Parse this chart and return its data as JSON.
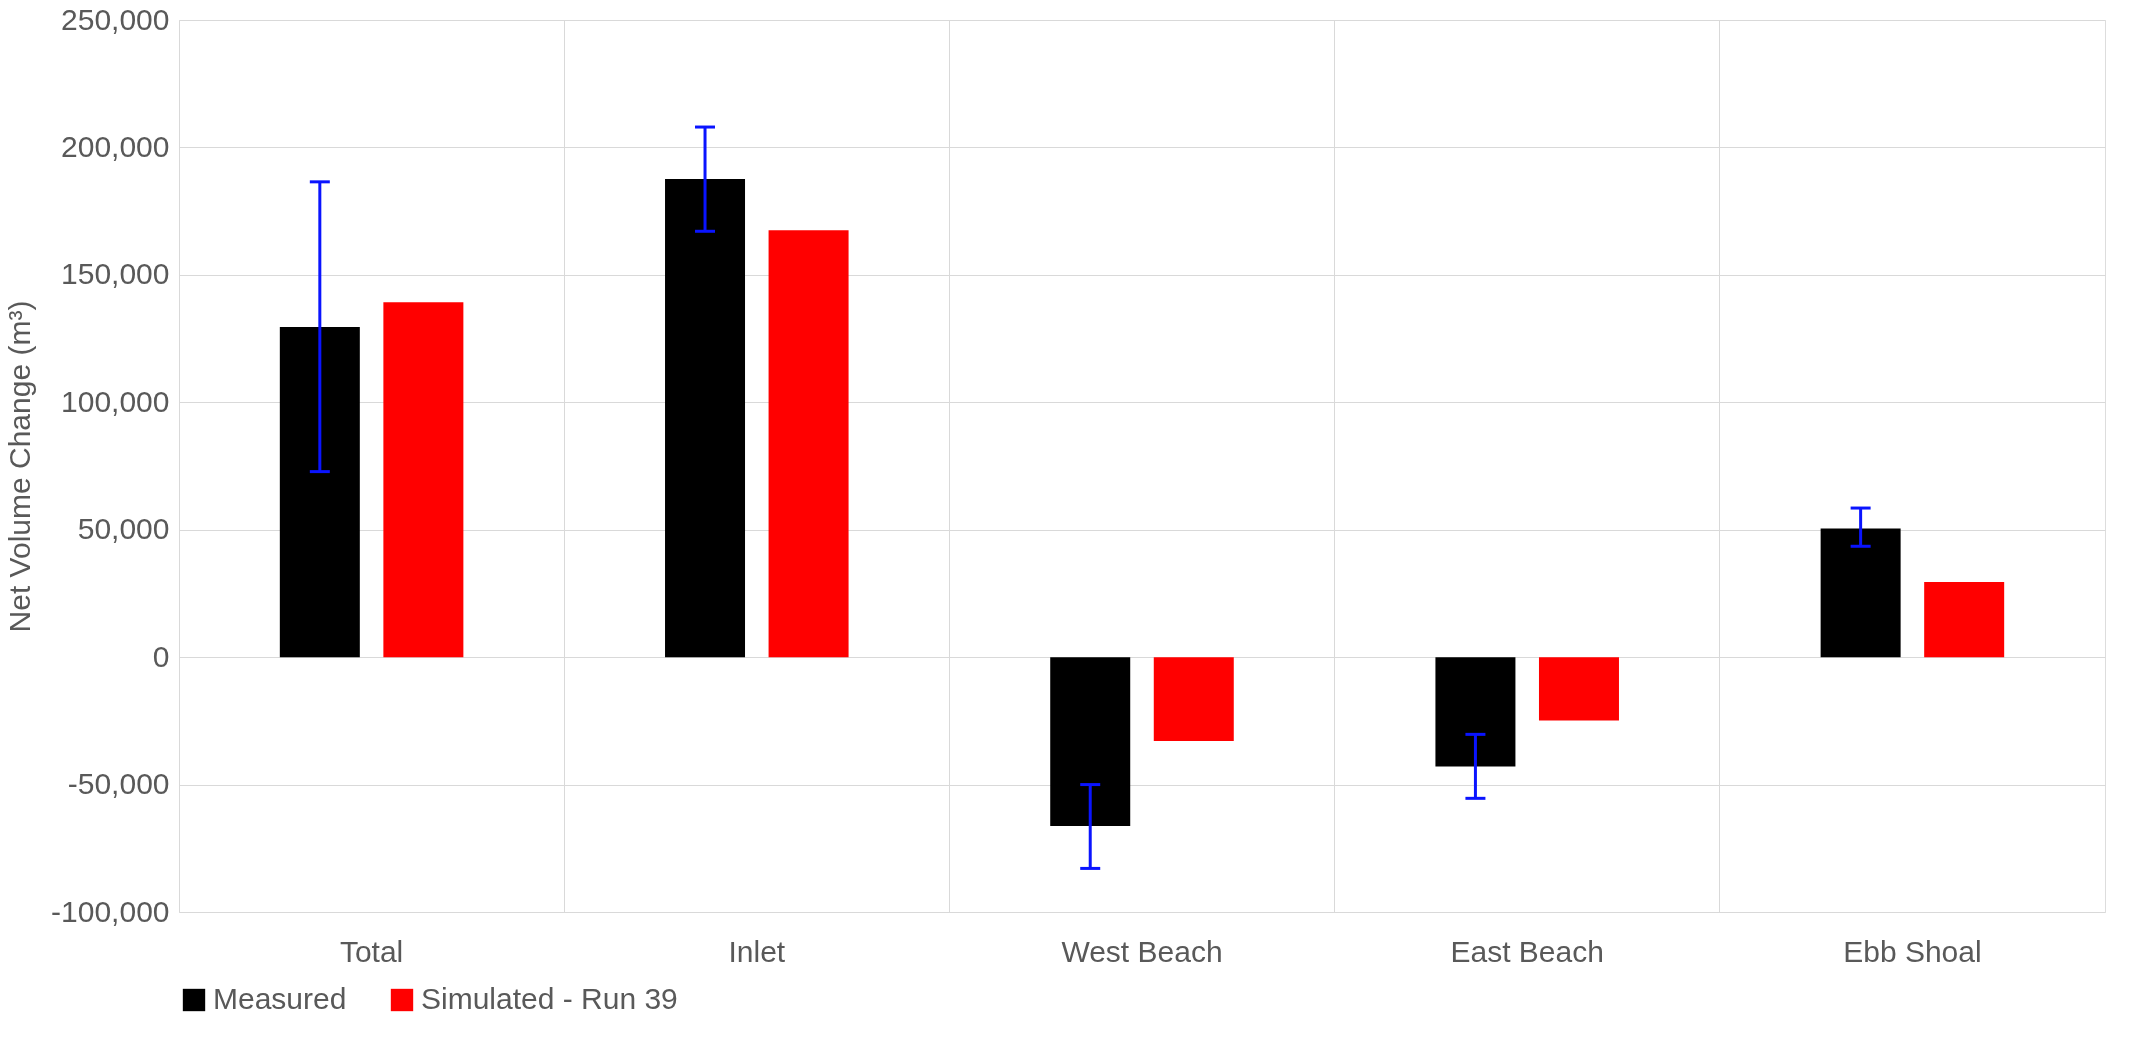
{
  "chart_data": {
    "type": "bar",
    "ylabel": "Net Volume Change (m³)",
    "categories": [
      "Total",
      "Inlet",
      "West Beach",
      "East Beach",
      "Ebb Shoal"
    ],
    "series": [
      {
        "name": "Measured",
        "color": "#000000",
        "values": [
          129500,
          187600,
          -66300,
          -42900,
          50500
        ],
        "errors": [
          [
            72800,
            186500
          ],
          [
            167100,
            208000
          ],
          [
            -82900,
            -50000
          ],
          [
            -55400,
            -30300
          ],
          [
            43500,
            58500
          ]
        ]
      },
      {
        "name": "Simulated - Run 39",
        "color": "#ff0000",
        "values": [
          139300,
          167500,
          -32900,
          -24900,
          29500
        ]
      }
    ],
    "ylim": [
      -100000,
      250000
    ],
    "yticks": [
      {
        "value": -100000,
        "label": "-100,000"
      },
      {
        "value": -50000,
        "label": "-50,000"
      },
      0,
      {
        "value": 50000,
        "label": "50,000"
      },
      {
        "value": 100000,
        "label": "100,000"
      },
      {
        "value": 150000,
        "label": "150,000"
      },
      {
        "value": 200000,
        "label": "200,000"
      },
      {
        "value": 250000,
        "label": "250,000"
      }
    ],
    "grid": true,
    "legend": "bottom"
  }
}
